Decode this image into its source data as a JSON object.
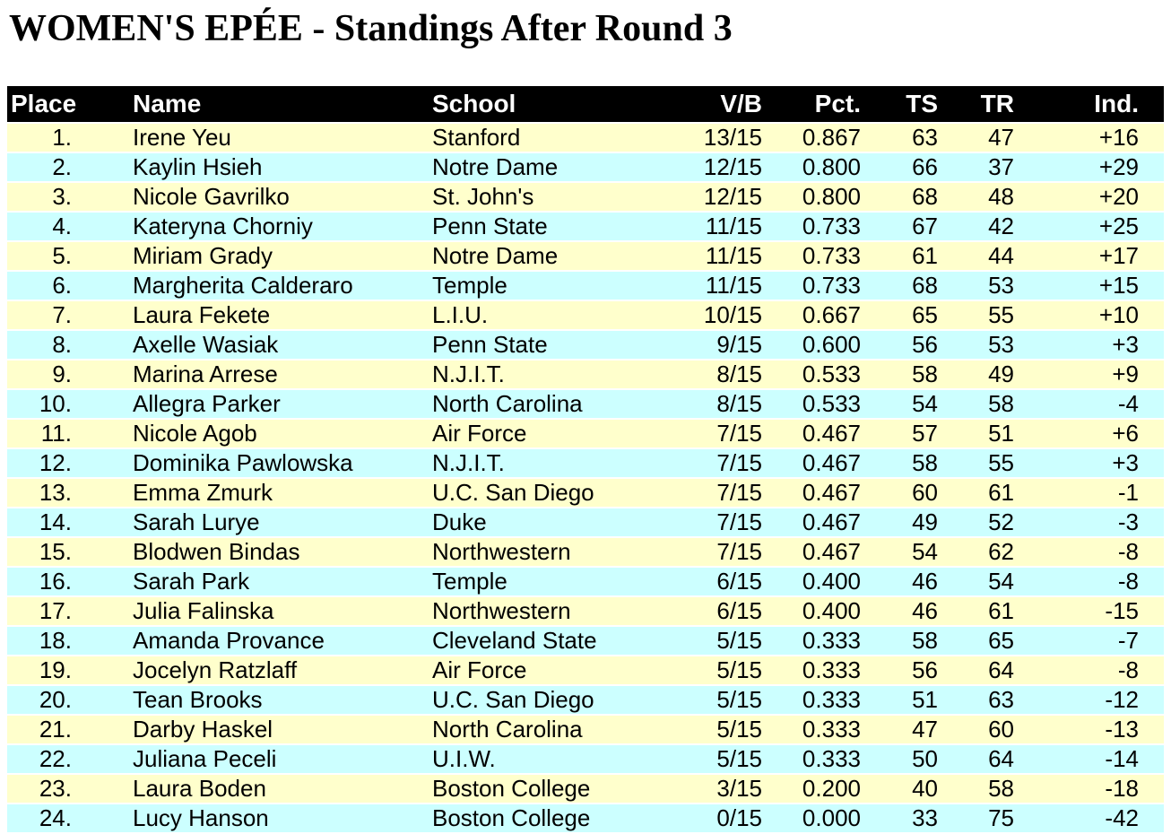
{
  "title": "WOMEN'S EPÉE - Standings After Round 3",
  "colors": {
    "header_bg": "#000000",
    "header_text": "#ffffff",
    "row_odd": "#ffffcc",
    "row_even": "#ccffff",
    "text": "#000000"
  },
  "table": {
    "columns": [
      {
        "key": "place",
        "label": "Place"
      },
      {
        "key": "name",
        "label": "Name"
      },
      {
        "key": "school",
        "label": "School"
      },
      {
        "key": "vb",
        "label": "V/B"
      },
      {
        "key": "pct",
        "label": "Pct."
      },
      {
        "key": "ts",
        "label": "TS"
      },
      {
        "key": "tr",
        "label": "TR"
      },
      {
        "key": "ind",
        "label": "Ind."
      }
    ],
    "rows": [
      {
        "place": "1.",
        "name": "Irene Yeu",
        "school": "Stanford",
        "vb": "13/15",
        "pct": "0.867",
        "ts": "63",
        "tr": "47",
        "ind": "+16"
      },
      {
        "place": "2.",
        "name": "Kaylin Hsieh",
        "school": "Notre Dame",
        "vb": "12/15",
        "pct": "0.800",
        "ts": "66",
        "tr": "37",
        "ind": "+29"
      },
      {
        "place": "3.",
        "name": "Nicole Gavrilko",
        "school": "St. John's",
        "vb": "12/15",
        "pct": "0.800",
        "ts": "68",
        "tr": "48",
        "ind": "+20"
      },
      {
        "place": "4.",
        "name": "Kateryna Chorniy",
        "school": "Penn State",
        "vb": "11/15",
        "pct": "0.733",
        "ts": "67",
        "tr": "42",
        "ind": "+25"
      },
      {
        "place": "5.",
        "name": "Miriam Grady",
        "school": "Notre Dame",
        "vb": "11/15",
        "pct": "0.733",
        "ts": "61",
        "tr": "44",
        "ind": "+17"
      },
      {
        "place": "6.",
        "name": "Margherita Calderaro",
        "school": "Temple",
        "vb": "11/15",
        "pct": "0.733",
        "ts": "68",
        "tr": "53",
        "ind": "+15"
      },
      {
        "place": "7.",
        "name": "Laura Fekete",
        "school": "L.I.U.",
        "vb": "10/15",
        "pct": "0.667",
        "ts": "65",
        "tr": "55",
        "ind": "+10"
      },
      {
        "place": "8.",
        "name": "Axelle Wasiak",
        "school": "Penn State",
        "vb": "9/15",
        "pct": "0.600",
        "ts": "56",
        "tr": "53",
        "ind": "+3"
      },
      {
        "place": "9.",
        "name": "Marina Arrese",
        "school": "N.J.I.T.",
        "vb": "8/15",
        "pct": "0.533",
        "ts": "58",
        "tr": "49",
        "ind": "+9"
      },
      {
        "place": "10.",
        "name": "Allegra Parker",
        "school": "North Carolina",
        "vb": "8/15",
        "pct": "0.533",
        "ts": "54",
        "tr": "58",
        "ind": "-4"
      },
      {
        "place": "11.",
        "name": "Nicole Agob",
        "school": "Air Force",
        "vb": "7/15",
        "pct": "0.467",
        "ts": "57",
        "tr": "51",
        "ind": "+6"
      },
      {
        "place": "12.",
        "name": "Dominika Pawlowska",
        "school": "N.J.I.T.",
        "vb": "7/15",
        "pct": "0.467",
        "ts": "58",
        "tr": "55",
        "ind": "+3"
      },
      {
        "place": "13.",
        "name": "Emma Zmurk",
        "school": "U.C. San Diego",
        "vb": "7/15",
        "pct": "0.467",
        "ts": "60",
        "tr": "61",
        "ind": "-1"
      },
      {
        "place": "14.",
        "name": "Sarah Lurye",
        "school": "Duke",
        "vb": "7/15",
        "pct": "0.467",
        "ts": "49",
        "tr": "52",
        "ind": "-3"
      },
      {
        "place": "15.",
        "name": "Blodwen Bindas",
        "school": "Northwestern",
        "vb": "7/15",
        "pct": "0.467",
        "ts": "54",
        "tr": "62",
        "ind": "-8"
      },
      {
        "place": "16.",
        "name": "Sarah Park",
        "school": "Temple",
        "vb": "6/15",
        "pct": "0.400",
        "ts": "46",
        "tr": "54",
        "ind": "-8"
      },
      {
        "place": "17.",
        "name": "Julia Falinska",
        "school": "Northwestern",
        "vb": "6/15",
        "pct": "0.400",
        "ts": "46",
        "tr": "61",
        "ind": "-15"
      },
      {
        "place": "18.",
        "name": "Amanda Provance",
        "school": "Cleveland State",
        "vb": "5/15",
        "pct": "0.333",
        "ts": "58",
        "tr": "65",
        "ind": "-7"
      },
      {
        "place": "19.",
        "name": "Jocelyn Ratzlaff",
        "school": "Air Force",
        "vb": "5/15",
        "pct": "0.333",
        "ts": "56",
        "tr": "64",
        "ind": "-8"
      },
      {
        "place": "20.",
        "name": "Tean Brooks",
        "school": "U.C. San Diego",
        "vb": "5/15",
        "pct": "0.333",
        "ts": "51",
        "tr": "63",
        "ind": "-12"
      },
      {
        "place": "21.",
        "name": "Darby Haskel",
        "school": "North Carolina",
        "vb": "5/15",
        "pct": "0.333",
        "ts": "47",
        "tr": "60",
        "ind": "-13"
      },
      {
        "place": "22.",
        "name": "Juliana Peceli",
        "school": "U.I.W.",
        "vb": "5/15",
        "pct": "0.333",
        "ts": "50",
        "tr": "64",
        "ind": "-14"
      },
      {
        "place": "23.",
        "name": "Laura Boden",
        "school": "Boston College",
        "vb": "3/15",
        "pct": "0.200",
        "ts": "40",
        "tr": "58",
        "ind": "-18"
      },
      {
        "place": "24.",
        "name": "Lucy Hanson",
        "school": "Boston College",
        "vb": "0/15",
        "pct": "0.000",
        "ts": "33",
        "tr": "75",
        "ind": "-42"
      }
    ]
  }
}
